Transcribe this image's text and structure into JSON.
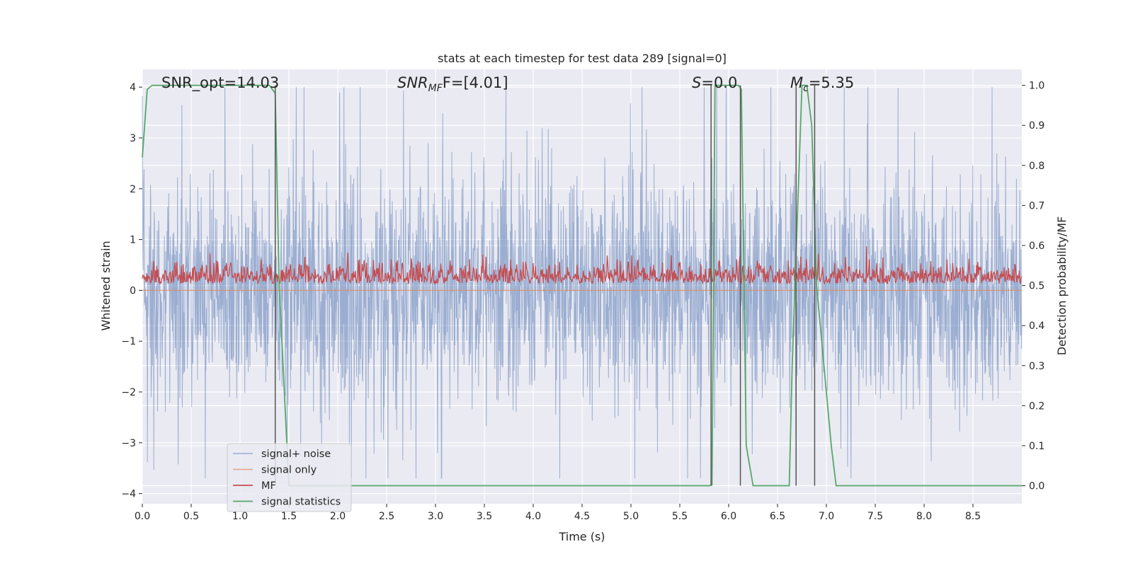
{
  "chart_data": {
    "type": "line",
    "title": "stats at each timestep for test data 289 [signal=0]",
    "xlabel": "Time (s)",
    "ylabel": "Whitened strain",
    "y2label": "Detection probability/MF",
    "xlim": [
      0,
      9.0
    ],
    "ylim": [
      -4.2,
      4.35
    ],
    "y2lim": [
      -0.045,
      1.04
    ],
    "x_ticks": [
      "0.0",
      "0.5",
      "1.0",
      "1.5",
      "2.0",
      "2.5",
      "3.0",
      "3.5",
      "4.0",
      "4.5",
      "5.0",
      "5.5",
      "6.0",
      "6.5",
      "7.0",
      "7.5",
      "8.0",
      "8.5"
    ],
    "y_ticks": [
      "4",
      "3",
      "2",
      "1",
      "0",
      "−1",
      "−2",
      "−3",
      "−4"
    ],
    "y2_ticks": [
      "1.0",
      "0.9",
      "0.8",
      "0.7",
      "0.6",
      "0.5",
      "0.4",
      "0.3",
      "0.2",
      "0.1",
      "0.0"
    ],
    "grid": true,
    "legend_position": "lower-left",
    "annotations": {
      "snr_opt": "SNR_opt=14.03",
      "snr_mf_main": "SNR",
      "snr_mf_sub": "MF",
      "snr_mf_value": "F=[4.01]",
      "s_main": "S",
      "s_value": "=0.0",
      "mc_main": "M",
      "mc_sub": "c",
      "mc_value": "=5.35"
    },
    "series": [
      {
        "name": "signal+ noise",
        "axis": "left",
        "color": "#4c72b0",
        "description_values": "whitened strain noise oscillating roughly between -3.7 and 4.0",
        "amplitude_range": [
          -3.7,
          4.0
        ]
      },
      {
        "name": "signal only",
        "axis": "left",
        "color": "#dd8452",
        "x": [
          0,
          9.0
        ],
        "y": [
          0.0,
          0.0
        ]
      },
      {
        "name": "MF",
        "axis": "right",
        "color": "#c44e52",
        "range": [
          0.49,
          0.6
        ]
      },
      {
        "name": "signal statistics",
        "axis": "right",
        "color": "#55a868",
        "x": [
          0.0,
          0.05,
          0.1,
          1.3,
          1.36,
          1.4,
          1.5,
          5.8,
          5.83,
          5.86,
          6.1,
          6.13,
          6.18,
          6.25,
          6.62,
          6.65,
          6.75,
          6.8,
          6.85,
          6.9,
          7.05,
          7.1,
          9.0
        ],
        "y": [
          0.82,
          0.99,
          1.0,
          1.0,
          0.98,
          0.5,
          0.0,
          0.0,
          0.002,
          1.0,
          1.0,
          0.99,
          0.1,
          0.0,
          0.0,
          0.3,
          1.0,
          1.0,
          0.9,
          0.5,
          0.1,
          0.0,
          0.0
        ]
      }
    ],
    "vertical_lines": [
      1.36,
      5.82,
      6.12,
      6.69,
      6.88
    ],
    "vertical_line_color": "#555555"
  }
}
